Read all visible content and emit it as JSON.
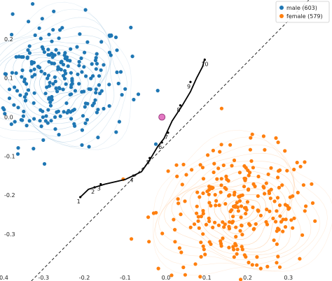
{
  "chart_data": {
    "type": "scatter",
    "title": "",
    "xlabel": "",
    "ylabel": "",
    "xlim": [
      -0.4,
      0.4
    ],
    "ylim": [
      -0.42,
      0.3
    ],
    "x_ticks": [
      {
        "value": -0.4,
        "label": "-0.4"
      },
      {
        "value": -0.3,
        "label": "-0.3"
      },
      {
        "value": -0.2,
        "label": "-0.2"
      },
      {
        "value": -0.1,
        "label": "-0.1"
      },
      {
        "value": 0.0,
        "label": "0.0"
      },
      {
        "value": 0.1,
        "label": "0.1"
      },
      {
        "value": 0.2,
        "label": "0.2"
      },
      {
        "value": 0.3,
        "label": "0.3"
      }
    ],
    "y_ticks": [
      {
        "value": 0.2,
        "label": "0.2"
      },
      {
        "value": 0.1,
        "label": "0.1"
      },
      {
        "value": 0.0,
        "label": "0.0"
      },
      {
        "value": -0.1,
        "label": "-0.1"
      },
      {
        "value": -0.2,
        "label": "-0.2"
      },
      {
        "value": -0.3,
        "label": "-0.3"
      }
    ],
    "grid": false,
    "legend_position": "top-right",
    "series": [
      {
        "name": "male (603)",
        "color": "#1f77b4",
        "count": 603,
        "center": [
          -0.27,
          0.09
        ],
        "spread": [
          0.09,
          0.08
        ]
      },
      {
        "name": "female (579)",
        "color": "#ff7f0e",
        "count": 579,
        "center": [
          0.18,
          -0.24
        ],
        "spread": [
          0.1,
          0.08
        ]
      }
    ],
    "boundary_line": {
      "style": "dashed",
      "points": [
        [
          -0.33,
          -0.42
        ],
        [
          0.35,
          0.3
        ]
      ]
    },
    "trajectory": {
      "color": "#000000",
      "points": [
        {
          "x": -0.21,
          "y": -0.205
        },
        {
          "x": -0.19,
          "y": -0.185
        },
        {
          "x": -0.15,
          "y": -0.172
        },
        {
          "x": -0.1,
          "y": -0.16
        },
        {
          "x": -0.06,
          "y": -0.14
        },
        {
          "x": -0.04,
          "y": -0.11
        },
        {
          "x": -0.02,
          "y": -0.075
        },
        {
          "x": -0.005,
          "y": -0.055
        },
        {
          "x": 0.015,
          "y": -0.01
        },
        {
          "x": 0.04,
          "y": 0.03
        },
        {
          "x": 0.06,
          "y": 0.065
        },
        {
          "x": 0.075,
          "y": 0.1
        },
        {
          "x": 0.09,
          "y": 0.13
        },
        {
          "x": 0.095,
          "y": 0.15
        }
      ],
      "step_labels": [
        {
          "label": "1",
          "x": -0.21,
          "y": -0.205
        },
        {
          "label": "2",
          "x": -0.175,
          "y": -0.18
        },
        {
          "label": "3",
          "x": -0.16,
          "y": -0.172
        },
        {
          "label": "4",
          "x": -0.08,
          "y": -0.15
        },
        {
          "label": "5",
          "x": -0.04,
          "y": -0.105
        },
        {
          "label": "6",
          "x": -0.01,
          "y": -0.065
        },
        {
          "label": "7",
          "x": 0.005,
          "y": -0.04
        },
        {
          "label": "8",
          "x": 0.035,
          "y": 0.03
        },
        {
          "label": "9",
          "x": 0.06,
          "y": 0.09
        },
        {
          "label": "10",
          "x": 0.095,
          "y": 0.147
        }
      ]
    },
    "marker": {
      "x": -0.01,
      "y": 0.0,
      "color": "#e377c2"
    }
  }
}
